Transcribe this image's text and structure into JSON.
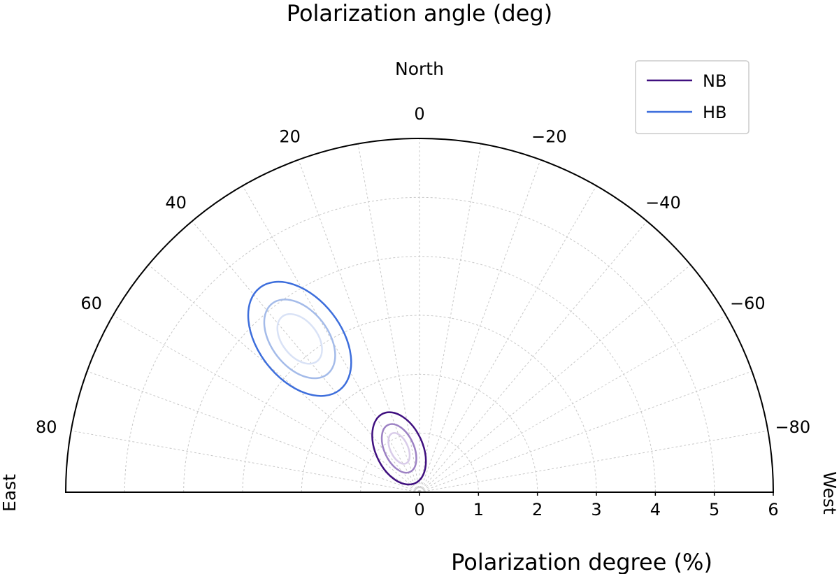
{
  "chart_data": {
    "type": "scatter",
    "title": "Polarization angle (deg)",
    "xlabel": "Polarization degree (%)",
    "direction_labels": {
      "top": "North",
      "left": "East",
      "right": "West"
    },
    "radial_axis": {
      "range": [
        0,
        6
      ],
      "ticks": [
        "0",
        "1",
        "2",
        "3",
        "4",
        "5",
        "6"
      ]
    },
    "angular_axis": {
      "range_deg": [
        -90,
        90
      ],
      "zero_direction": "North",
      "positive_toward": "East",
      "tick_values": [
        80,
        60,
        40,
        20,
        0,
        -20,
        -40,
        -60,
        -80
      ],
      "tick_labels": [
        "80",
        "60",
        "40",
        "20",
        "0",
        "−20",
        "−40",
        "−60",
        "−80"
      ]
    },
    "grid": true,
    "legend": {
      "position": "top-right"
    },
    "series": [
      {
        "name": "NB",
        "color": "#3f0f7f",
        "shade_colors": [
          "#3f0f7f",
          "#9d82c4",
          "#d9cce9"
        ],
        "center_degree": 0.82,
        "center_angle_deg": 25,
        "contours": [
          {
            "level": 1,
            "semi_major": 0.65,
            "semi_minor": 0.4,
            "orientation_deg": 25
          },
          {
            "level": 2,
            "semi_major": 0.44,
            "semi_minor": 0.25,
            "orientation_deg": 25
          },
          {
            "level": 3,
            "semi_major": 0.28,
            "semi_minor": 0.15,
            "orientation_deg": 25
          }
        ]
      },
      {
        "name": "HB",
        "color": "#3d6edc",
        "shade_colors": [
          "#3d6edc",
          "#a4bbe9",
          "#d9e2f6"
        ],
        "center_degree": 3.3,
        "center_angle_deg": 38,
        "contours": [
          {
            "level": 1,
            "semi_major": 1.1,
            "semi_minor": 0.7,
            "orientation_deg": 38
          },
          {
            "level": 2,
            "semi_major": 0.76,
            "semi_minor": 0.48,
            "orientation_deg": 38
          },
          {
            "level": 3,
            "semi_major": 0.48,
            "semi_minor": 0.3,
            "orientation_deg": 38
          }
        ]
      }
    ]
  }
}
